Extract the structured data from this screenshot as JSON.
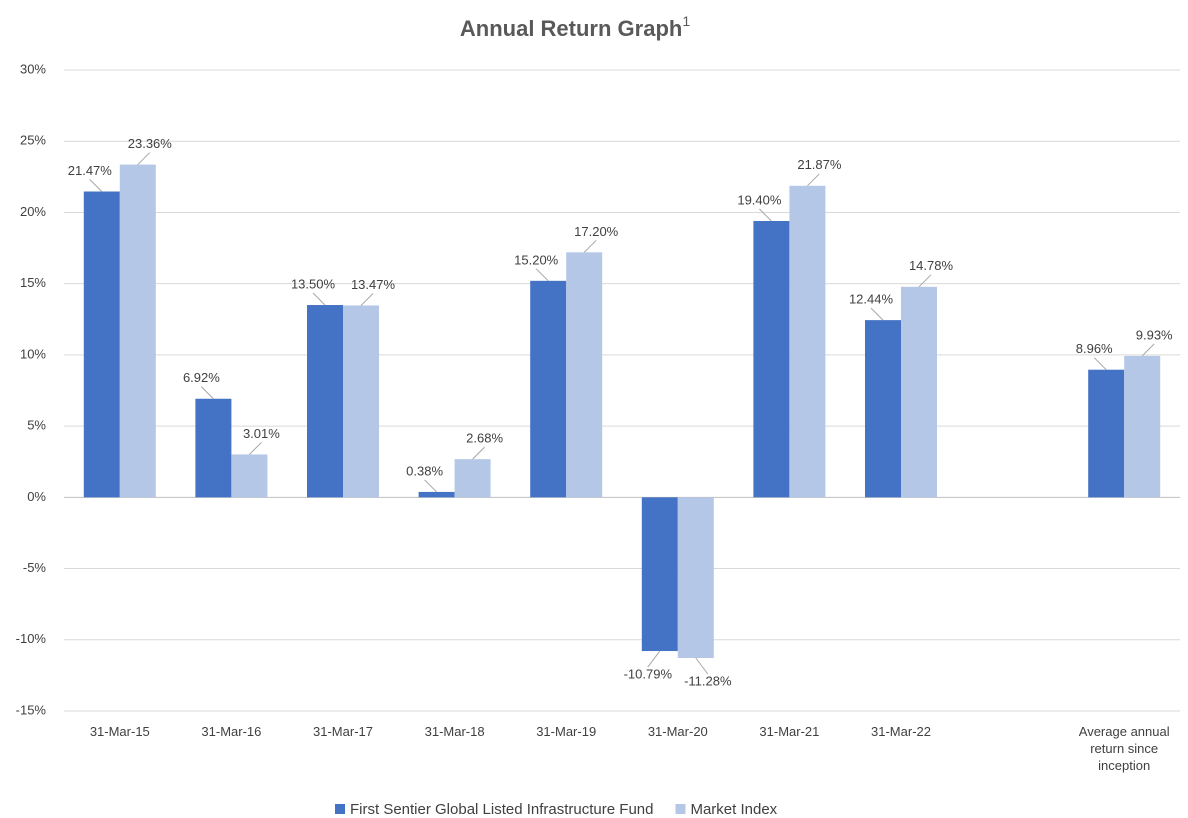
{
  "chart_data": {
    "type": "bar",
    "title": "Annual Return Graph",
    "title_superscript": "1",
    "categories": [
      "31-Mar-15",
      "31-Mar-16",
      "31-Mar-17",
      "31-Mar-18",
      "31-Mar-19",
      "31-Mar-20",
      "31-Mar-21",
      "31-Mar-22",
      null,
      "Average annual return since inception"
    ],
    "series": [
      {
        "name": "First Sentier Global Listed Infrastructure Fund",
        "color": "#4472c4",
        "values": [
          21.47,
          6.92,
          13.5,
          0.38,
          15.2,
          -10.79,
          19.4,
          12.44,
          null,
          8.96
        ],
        "value_labels": [
          "21.47%",
          "6.92%",
          "13.50%",
          "0.38%",
          "15.20%",
          "-10.79%",
          "19.40%",
          "12.44%",
          null,
          "8.96%"
        ]
      },
      {
        "name": "Market Index",
        "color": "#b4c7e7",
        "values": [
          23.36,
          3.01,
          13.47,
          2.68,
          17.2,
          -11.28,
          21.87,
          14.78,
          null,
          9.93
        ],
        "value_labels": [
          "23.36%",
          "3.01%",
          "13.47%",
          "2.68%",
          "17.20%",
          "-11.28%",
          "21.87%",
          "14.78%",
          null,
          "9.93%"
        ]
      }
    ],
    "ylim": [
      -15,
      30
    ],
    "yticks": [
      {
        "value": -15,
        "label": "-15%"
      },
      {
        "value": -10,
        "label": "-10%"
      },
      {
        "value": -5,
        "label": "-5%"
      },
      {
        "value": 0,
        "label": "0%"
      },
      {
        "value": 5,
        "label": "5%"
      },
      {
        "value": 10,
        "label": "10%"
      },
      {
        "value": 15,
        "label": "15%"
      },
      {
        "value": 20,
        "label": "20%"
      },
      {
        "value": 25,
        "label": "25%"
      },
      {
        "value": 30,
        "label": "30%"
      }
    ],
    "grid": true,
    "legend": "bottom"
  }
}
